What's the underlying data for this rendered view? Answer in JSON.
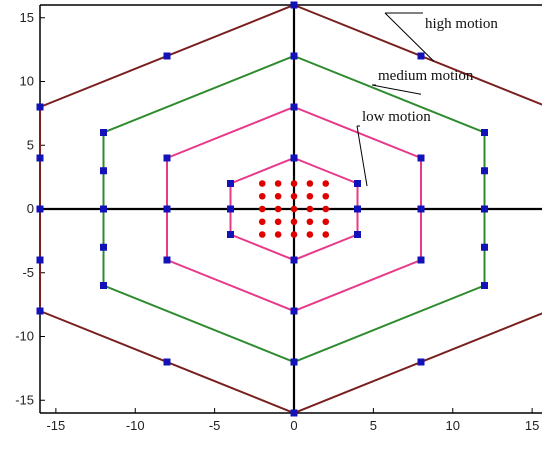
{
  "colors": {
    "background": "#ffffff",
    "axis": "#000000",
    "frame": "#000000",
    "high": "#7a1f1f",
    "medium": "#2e8b2e",
    "low": "#e8388a",
    "search_point": "#1212b8",
    "center_point": "#e00000",
    "leader": "#000000"
  },
  "chart_data": {
    "type": "scatter",
    "xlim": [
      -16,
      16
    ],
    "ylim": [
      -16,
      16
    ],
    "xticks": [
      -15,
      -10,
      -5,
      0,
      5,
      10,
      15
    ],
    "yticks": [
      15,
      10,
      5,
      0,
      -5,
      -10,
      -15
    ],
    "grid": false,
    "hexagons": [
      {
        "key": "high",
        "label": "high motion",
        "vertices": [
          [
            0,
            16
          ],
          [
            16,
            8
          ],
          [
            16,
            -8
          ],
          [
            0,
            -16
          ],
          [
            -16,
            -8
          ],
          [
            -16,
            8
          ]
        ],
        "points": [
          [
            0,
            16
          ],
          [
            8,
            12
          ],
          [
            16,
            8
          ],
          [
            16,
            4
          ],
          [
            16,
            0
          ],
          [
            16,
            -4
          ],
          [
            16,
            -8
          ],
          [
            8,
            -12
          ],
          [
            0,
            -16
          ],
          [
            -8,
            -12
          ],
          [
            -16,
            -8
          ],
          [
            -16,
            -4
          ],
          [
            -16,
            0
          ],
          [
            -16,
            4
          ],
          [
            -16,
            8
          ],
          [
            -8,
            12
          ]
        ]
      },
      {
        "key": "medium",
        "label": "medium motion",
        "vertices": [
          [
            0,
            12
          ],
          [
            12,
            6
          ],
          [
            12,
            -6
          ],
          [
            0,
            -12
          ],
          [
            -12,
            -6
          ],
          [
            -12,
            6
          ]
        ],
        "points": [
          [
            0,
            12
          ],
          [
            12,
            6
          ],
          [
            12,
            3
          ],
          [
            12,
            0
          ],
          [
            12,
            -3
          ],
          [
            12,
            -6
          ],
          [
            0,
            -12
          ],
          [
            -12,
            -6
          ],
          [
            -12,
            -3
          ],
          [
            -12,
            0
          ],
          [
            -12,
            3
          ],
          [
            -12,
            6
          ]
        ]
      },
      {
        "key": "low",
        "label": "low motion",
        "vertices": [
          [
            0,
            8
          ],
          [
            8,
            4
          ],
          [
            8,
            -4
          ],
          [
            0,
            -8
          ],
          [
            -8,
            -4
          ],
          [
            -8,
            4
          ]
        ],
        "points": [
          [
            0,
            8
          ],
          [
            8,
            4
          ],
          [
            8,
            0
          ],
          [
            8,
            -4
          ],
          [
            0,
            -8
          ],
          [
            -8,
            -4
          ],
          [
            -8,
            0
          ],
          [
            -8,
            4
          ]
        ]
      },
      {
        "key": "center",
        "label": "",
        "vertices": [
          [
            0,
            4
          ],
          [
            4,
            2
          ],
          [
            4,
            -2
          ],
          [
            0,
            -4
          ],
          [
            -4,
            -2
          ],
          [
            -4,
            2
          ]
        ],
        "points": [
          [
            0,
            4
          ],
          [
            4,
            2
          ],
          [
            4,
            0
          ],
          [
            4,
            -2
          ],
          [
            0,
            -4
          ],
          [
            -4,
            -2
          ],
          [
            -4,
            0
          ],
          [
            -4,
            2
          ]
        ]
      }
    ],
    "center_grid": {
      "x": [
        -2,
        -1,
        0,
        1,
        2
      ],
      "y": [
        2,
        1,
        0,
        -1,
        -2
      ]
    },
    "annotations": [
      {
        "key": "high",
        "text": "high motion",
        "target": [
          8.8,
          11.6
        ]
      },
      {
        "key": "medium",
        "text": "medium motion",
        "target": [
          8.0,
          9.0
        ]
      },
      {
        "key": "low",
        "text": "low motion",
        "target": [
          4.6,
          1.8
        ]
      }
    ]
  }
}
